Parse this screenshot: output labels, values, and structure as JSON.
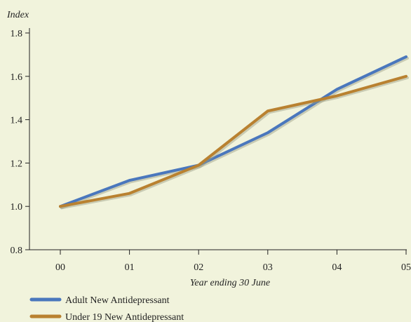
{
  "chart_data": {
    "type": "line",
    "ylabel": "Index",
    "xlabel": "Year ending 30 June",
    "categories": [
      "00",
      "01",
      "02",
      "03",
      "04",
      "05"
    ],
    "ylim": [
      0.8,
      1.8
    ],
    "yticks": [
      "0.8",
      "1.0",
      "1.2",
      "1.4",
      "1.6",
      "1.8"
    ],
    "grid": false,
    "legend_position": "bottom-left",
    "series": [
      {
        "name": "Adult New Antidepressant",
        "color": "#4a77bd",
        "values": [
          1.0,
          1.12,
          1.19,
          1.34,
          1.54,
          1.69
        ]
      },
      {
        "name": "Under 19 New Antidepressant",
        "color": "#b98130",
        "values": [
          1.0,
          1.06,
          1.19,
          1.44,
          1.51,
          1.6
        ]
      }
    ]
  }
}
